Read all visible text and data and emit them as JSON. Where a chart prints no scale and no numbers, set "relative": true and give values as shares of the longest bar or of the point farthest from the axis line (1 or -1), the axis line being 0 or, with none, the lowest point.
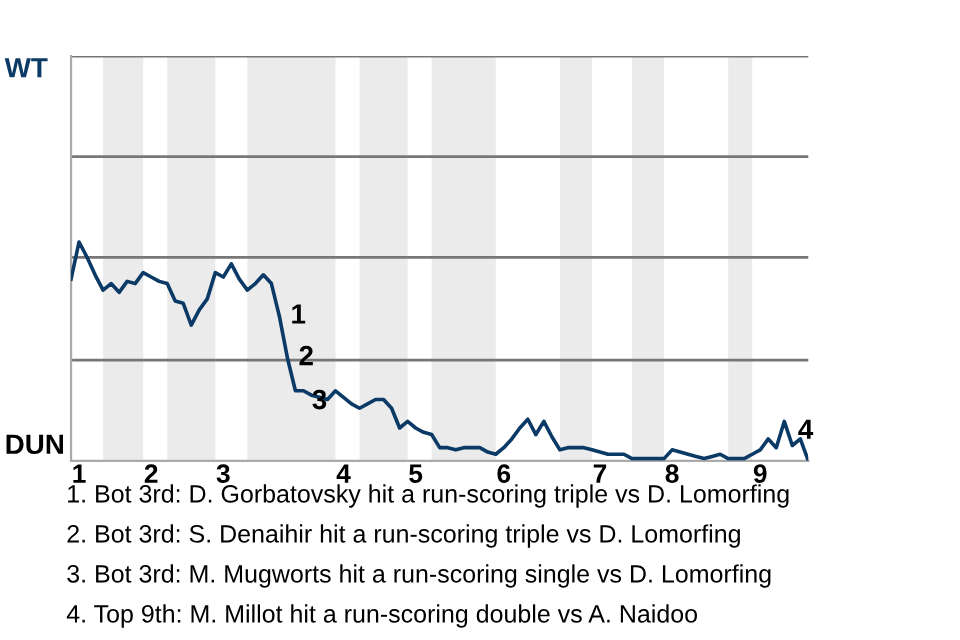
{
  "chart_data": {
    "type": "line",
    "relative": true,
    "categories": [
      null,
      "1",
      null,
      null,
      null,
      null,
      null,
      null,
      null,
      null,
      "2",
      null,
      null,
      null,
      null,
      null,
      null,
      null,
      null,
      "3",
      null,
      null,
      null,
      null,
      null,
      null,
      null,
      null,
      null,
      null,
      null,
      null,
      null,
      null,
      "4",
      null,
      null,
      null,
      null,
      null,
      null,
      null,
      null,
      "5",
      null,
      null,
      null,
      null,
      null,
      null,
      null,
      null,
      null,
      null,
      "6",
      null,
      null,
      null,
      null,
      null,
      null,
      null,
      null,
      null,
      null,
      null,
      "7",
      null,
      null,
      null,
      null,
      null,
      null,
      null,
      null,
      "8",
      null,
      null,
      null,
      null,
      null,
      null,
      null,
      null,
      null,
      null,
      "9",
      null,
      null,
      null,
      null,
      null,
      null
    ],
    "series": [
      {
        "color": "#0b3a66",
        "values": [
          0.83,
          1,
          0.93,
          0.85,
          0.78,
          0.81,
          0.77,
          0.82,
          0.81,
          0.86,
          0.84,
          0.82,
          0.81,
          0.73,
          0.72,
          0.62,
          0.69,
          0.74,
          0.86,
          0.84,
          0.9,
          0.83,
          0.78,
          0.81,
          0.85,
          0.81,
          0.66,
          0.47,
          0.32,
          0.32,
          0.3,
          0.29,
          0.28,
          0.32,
          0.29,
          0.26,
          0.24,
          0.26,
          0.28,
          0.28,
          0.24,
          0.15,
          0.18,
          0.15,
          0.13,
          0.12,
          0.06,
          0.06,
          0.05,
          0.06,
          0.06,
          0.06,
          0.04,
          0.03,
          0.06,
          0.1,
          0.15,
          0.19,
          0.12,
          0.18,
          0.11,
          0.05,
          0.06,
          0.06,
          0.06,
          0.05,
          0.04,
          0.03,
          0.03,
          0.03,
          0.01,
          0.01,
          0.01,
          0.01,
          0.01,
          0.05,
          0.04,
          0.03,
          0.02,
          0.01,
          0.02,
          0.03,
          0.01,
          0.01,
          0.01,
          0.03,
          0.05,
          0.1,
          0.06,
          0.18,
          0.07,
          0.1,
          0
        ]
      }
    ],
    "ref_lines": [
      {
        "axis": "y",
        "value": 0.46,
        "color": "#777777"
      },
      {
        "axis": "y",
        "value": 0.93,
        "color": "#777777"
      },
      {
        "axis": "y",
        "value": 1.39,
        "color": "#777777"
      },
      {
        "axis": "y",
        "value": 1.85,
        "color": "#777777"
      }
    ],
    "legend": false,
    "marker": "none",
    "line_style": "solid",
    "annotations": [
      "WT",
      "DUN",
      "1",
      "2",
      "3",
      "4",
      "1. Bot 3rd: D. Gorbatovsky hit a run-scoring triple vs D. Lomorfing",
      "2. Bot 3rd: S. Denaihir hit a run-scoring triple vs D. Lomorfing",
      "3. Bot 3rd: M. Mugworts hit a run-scoring single vs D. Lomorfing",
      "4. Top 9th: M. Millot hit a run-scoring double vs A. Naidoo"
    ]
  }
}
